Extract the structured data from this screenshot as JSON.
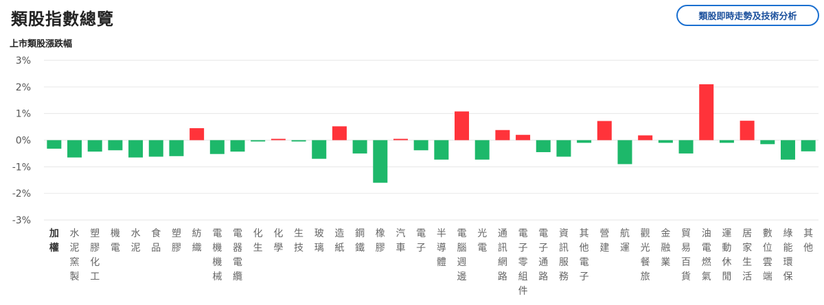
{
  "header": {
    "title": "類股指數總覽",
    "analysis_button_label": "類股即時走勢及技術分析"
  },
  "colors": {
    "up": "#ff333a",
    "down": "#1db86a",
    "grid": "#e6e6e6",
    "button_border": "#1a6fd0"
  },
  "chart_data": {
    "type": "bar",
    "title": "上市類股漲跌幅",
    "xlabel": "",
    "ylabel": "",
    "ylim": [
      -3,
      3
    ],
    "y_ticks": [
      "3%",
      "2%",
      "1%",
      "0%",
      "-1%",
      "-2%",
      "-3%"
    ],
    "y_tick_values": [
      3,
      2,
      1,
      0,
      -1,
      -2,
      -3
    ],
    "grid": true,
    "categories": [
      "加權",
      "水泥窯製",
      "塑膠化工",
      "機電",
      "水泥",
      "食品",
      "塑膠",
      "紡織",
      "電機機械",
      "電器電纜",
      "化生",
      "化學",
      "生技",
      "玻璃",
      "造紙",
      "鋼鐵",
      "橡膠",
      "汽車",
      "電子",
      "半導體",
      "電腦週邊",
      "光電",
      "通訊網路",
      "電子零組件",
      "電子通路",
      "資訊服務",
      "其他電子",
      "營建",
      "航運",
      "觀光餐旅",
      "金融業",
      "貿易百貨",
      "油電燃氣",
      "運動休閒",
      "居家生活",
      "數位雲端",
      "綠能環保",
      "其他"
    ],
    "values": [
      -0.32,
      -0.65,
      -0.43,
      -0.38,
      -0.65,
      -0.62,
      -0.6,
      0.45,
      -0.52,
      -0.43,
      -0.05,
      0.05,
      -0.05,
      -0.7,
      0.52,
      -0.5,
      -1.6,
      0.05,
      -0.38,
      -0.73,
      1.08,
      -0.73,
      0.38,
      0.2,
      -0.45,
      -0.62,
      -0.1,
      0.72,
      -0.9,
      0.18,
      -0.1,
      -0.5,
      2.1,
      -0.1,
      0.73,
      -0.15,
      -0.73,
      -0.42
    ]
  }
}
